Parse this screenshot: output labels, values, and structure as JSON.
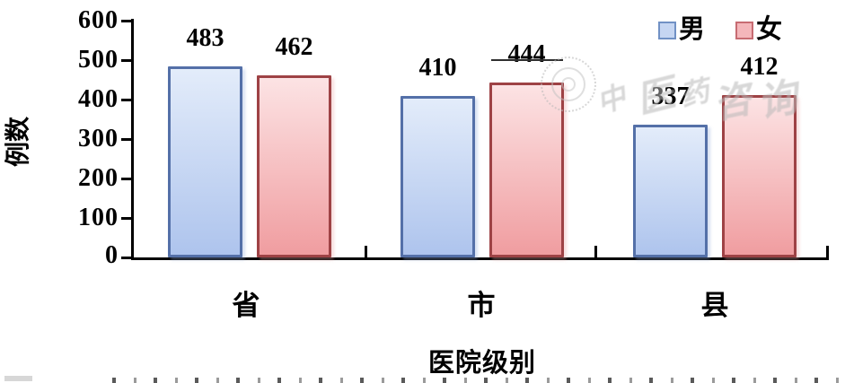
{
  "chart_data": {
    "type": "bar",
    "title": "",
    "categories": [
      "省",
      "市",
      "县"
    ],
    "series": [
      {
        "name": "男",
        "values": [
          483,
          410,
          337
        ],
        "fill_top": "#e3ecfa",
        "fill_bottom": "#aec4ed",
        "border": "#5470a8",
        "swatch_fill": "#c6d6f2",
        "swatch_border": "#7191c5",
        "shadow": "rgba(140,165,215,0.35)"
      },
      {
        "name": "女",
        "values": [
          462,
          444,
          412
        ],
        "fill_top": "#fce3e4",
        "fill_bottom": "#f09da0",
        "border": "#9e4245",
        "swatch_fill": "#f4b6ba",
        "swatch_border": "#c76b72",
        "shadow": "rgba(235,160,160,0.35)"
      }
    ],
    "xlabel": "医院级别",
    "ylabel": "例数",
    "ylim": [
      0,
      600
    ],
    "yticks": [
      0,
      100,
      200,
      300,
      400,
      500,
      600
    ],
    "legend_position": "top-right",
    "grid": false,
    "annotations": {
      "underlined_value": "444"
    }
  },
  "watermark": {
    "kind": "circular-seal-stamp",
    "glyphs": [
      "中",
      "医",
      "药",
      "咨",
      "询"
    ]
  }
}
